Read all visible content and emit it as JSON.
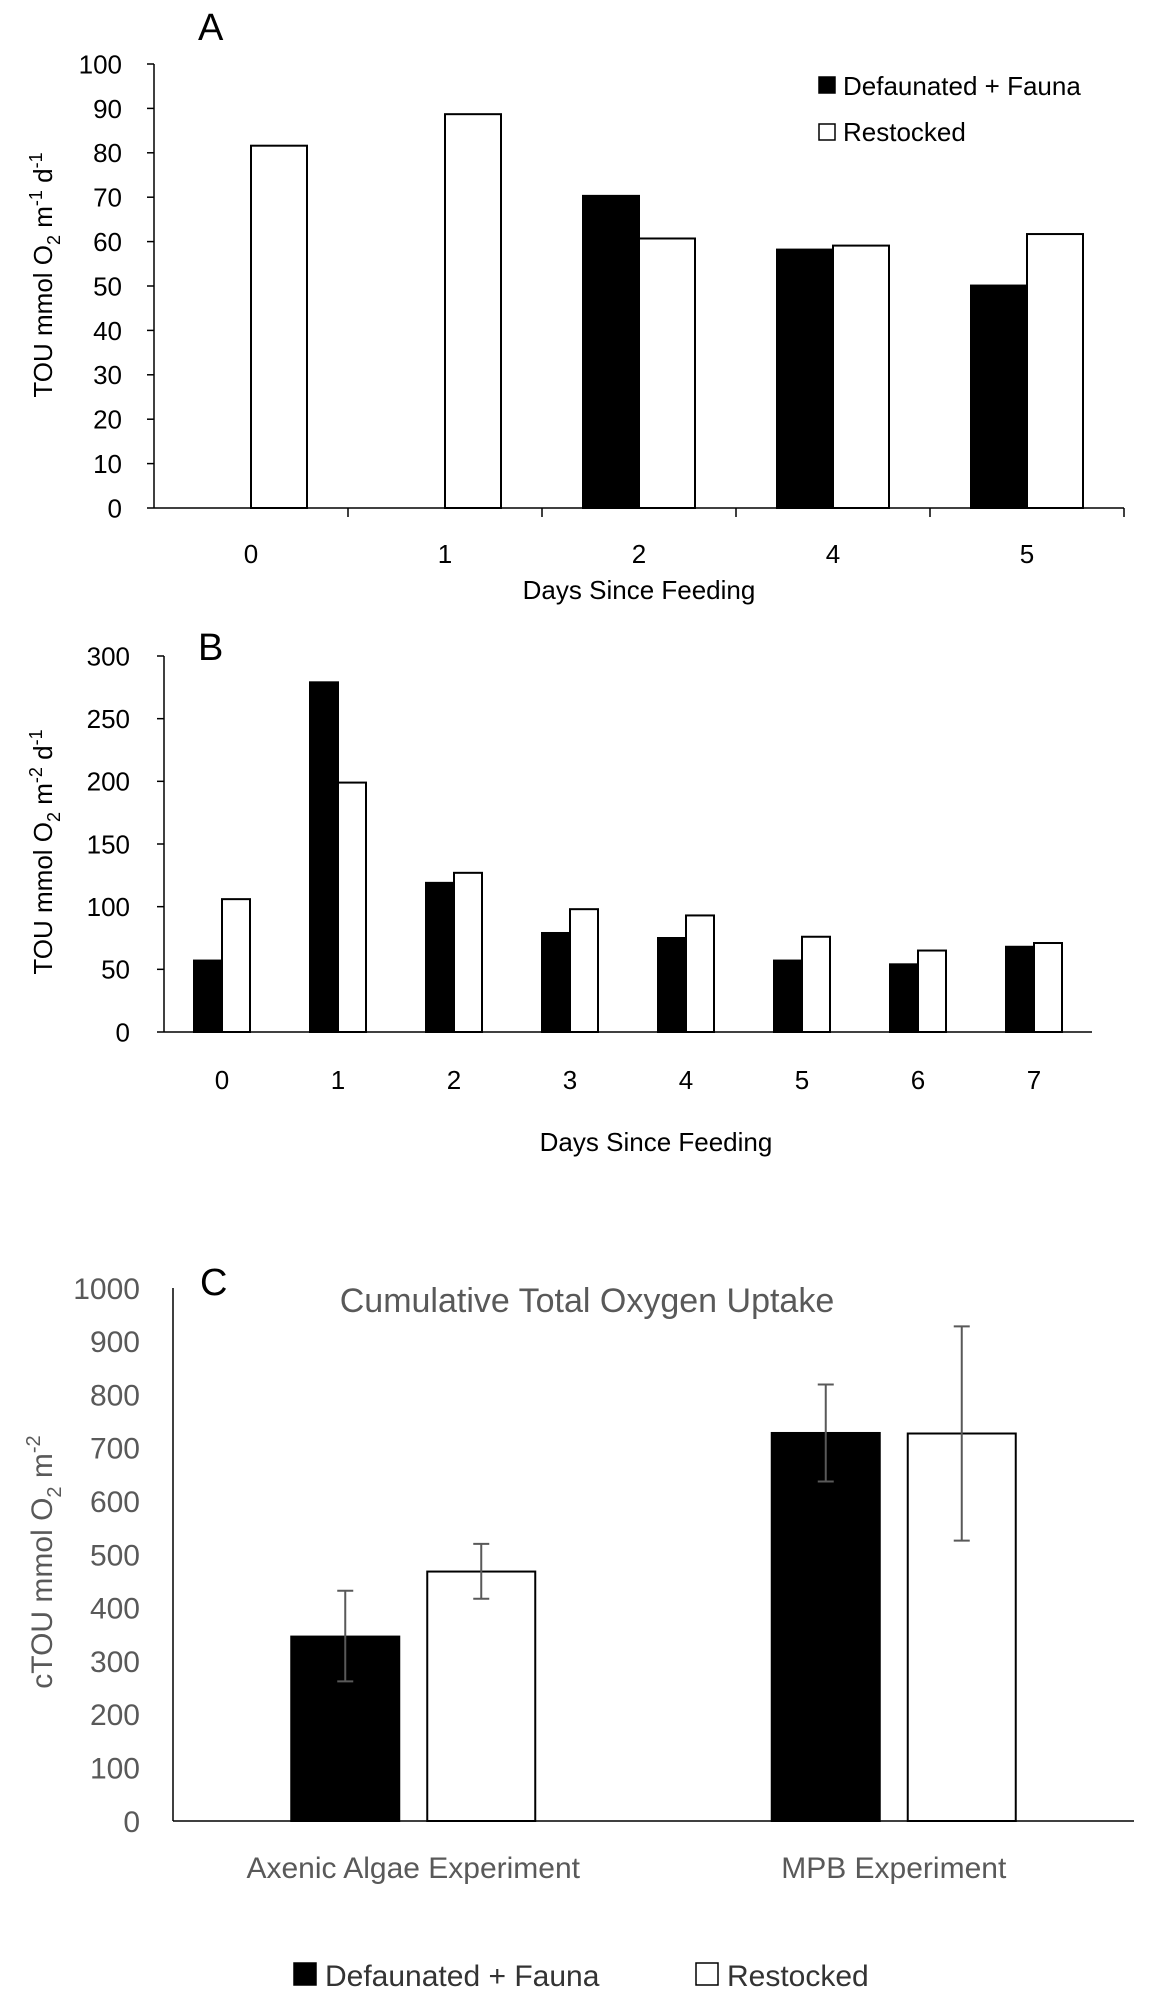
{
  "colors": {
    "defaunated_fill": "#000000",
    "restocked_fill": "#ffffff",
    "bar_stroke": "#000000",
    "axis": "#000000",
    "muted_text": "#595959",
    "error_bar": "#595959"
  },
  "chart_data": [
    {
      "panel": "A",
      "type": "bar",
      "title": "",
      "xlabel": "Days Since Feeding",
      "ylabel": "TOU mmol O2 m-1 d-1",
      "ylabel_parts": {
        "base": "TOU mmol O",
        "sub": "2",
        "mid": " m",
        "sup1": "-1",
        "mid2": " d",
        "sup2": "-1"
      },
      "categories": [
        "0",
        "1",
        "2",
        "4",
        "5"
      ],
      "ylim": [
        0,
        100
      ],
      "yticks": [
        "0",
        "10",
        "20",
        "30",
        "40",
        "50",
        "60",
        "70",
        "80",
        "90",
        "100"
      ],
      "grid": false,
      "legend_position": "top-right",
      "series": [
        {
          "name": "Defaunated + Fauna",
          "values": [
            null,
            null,
            70.3,
            58.2,
            50.1
          ]
        },
        {
          "name": "Restocked",
          "values": [
            81.6,
            88.7,
            60.7,
            59.1,
            61.7
          ]
        }
      ]
    },
    {
      "panel": "B",
      "type": "bar",
      "title": "",
      "xlabel": "Days Since Feeding",
      "ylabel": "TOU mmol O2 m-2 d-1",
      "ylabel_parts": {
        "base": "TOU mmol O",
        "sub": "2",
        "mid": " m",
        "sup1": "-2",
        "mid2": " d",
        "sup2": "-1"
      },
      "categories": [
        "0",
        "1",
        "2",
        "3",
        "4",
        "5",
        "6",
        "7"
      ],
      "ylim": [
        0,
        300
      ],
      "yticks": [
        "0",
        "50",
        "100",
        "150",
        "200",
        "250",
        "300"
      ],
      "grid": false,
      "legend_position": "none",
      "series": [
        {
          "name": "Defaunated + Fauna",
          "values": [
            57,
            279,
            119,
            79,
            75,
            57,
            54,
            68
          ]
        },
        {
          "name": "Restocked",
          "values": [
            106,
            199,
            127,
            98,
            93,
            76,
            65,
            71
          ]
        }
      ]
    },
    {
      "panel": "C",
      "type": "bar",
      "title": "Cumulative Total Oxygen Uptake",
      "xlabel": "",
      "ylabel": "cTOU mmol O2 m-2",
      "ylabel_parts": {
        "base": "cTOU mmol O",
        "sub": "2",
        "mid": " m",
        "sup1": "-2"
      },
      "categories": [
        "Axenic Algae Experiment",
        "MPB Experiment"
      ],
      "ylim": [
        0,
        1000
      ],
      "yticks": [
        "0",
        "100",
        "200",
        "300",
        "400",
        "500",
        "600",
        "700",
        "800",
        "900",
        "1000"
      ],
      "grid": false,
      "legend_position": "bottom",
      "series": [
        {
          "name": "Defaunated + Fauna",
          "values": [
            346,
            728
          ],
          "error_low": [
            262,
            637
          ],
          "error_high": [
            432,
            819
          ]
        },
        {
          "name": "Restocked",
          "values": [
            468,
            727
          ],
          "error_low": [
            417,
            526
          ],
          "error_high": [
            520,
            928
          ]
        }
      ]
    }
  ]
}
